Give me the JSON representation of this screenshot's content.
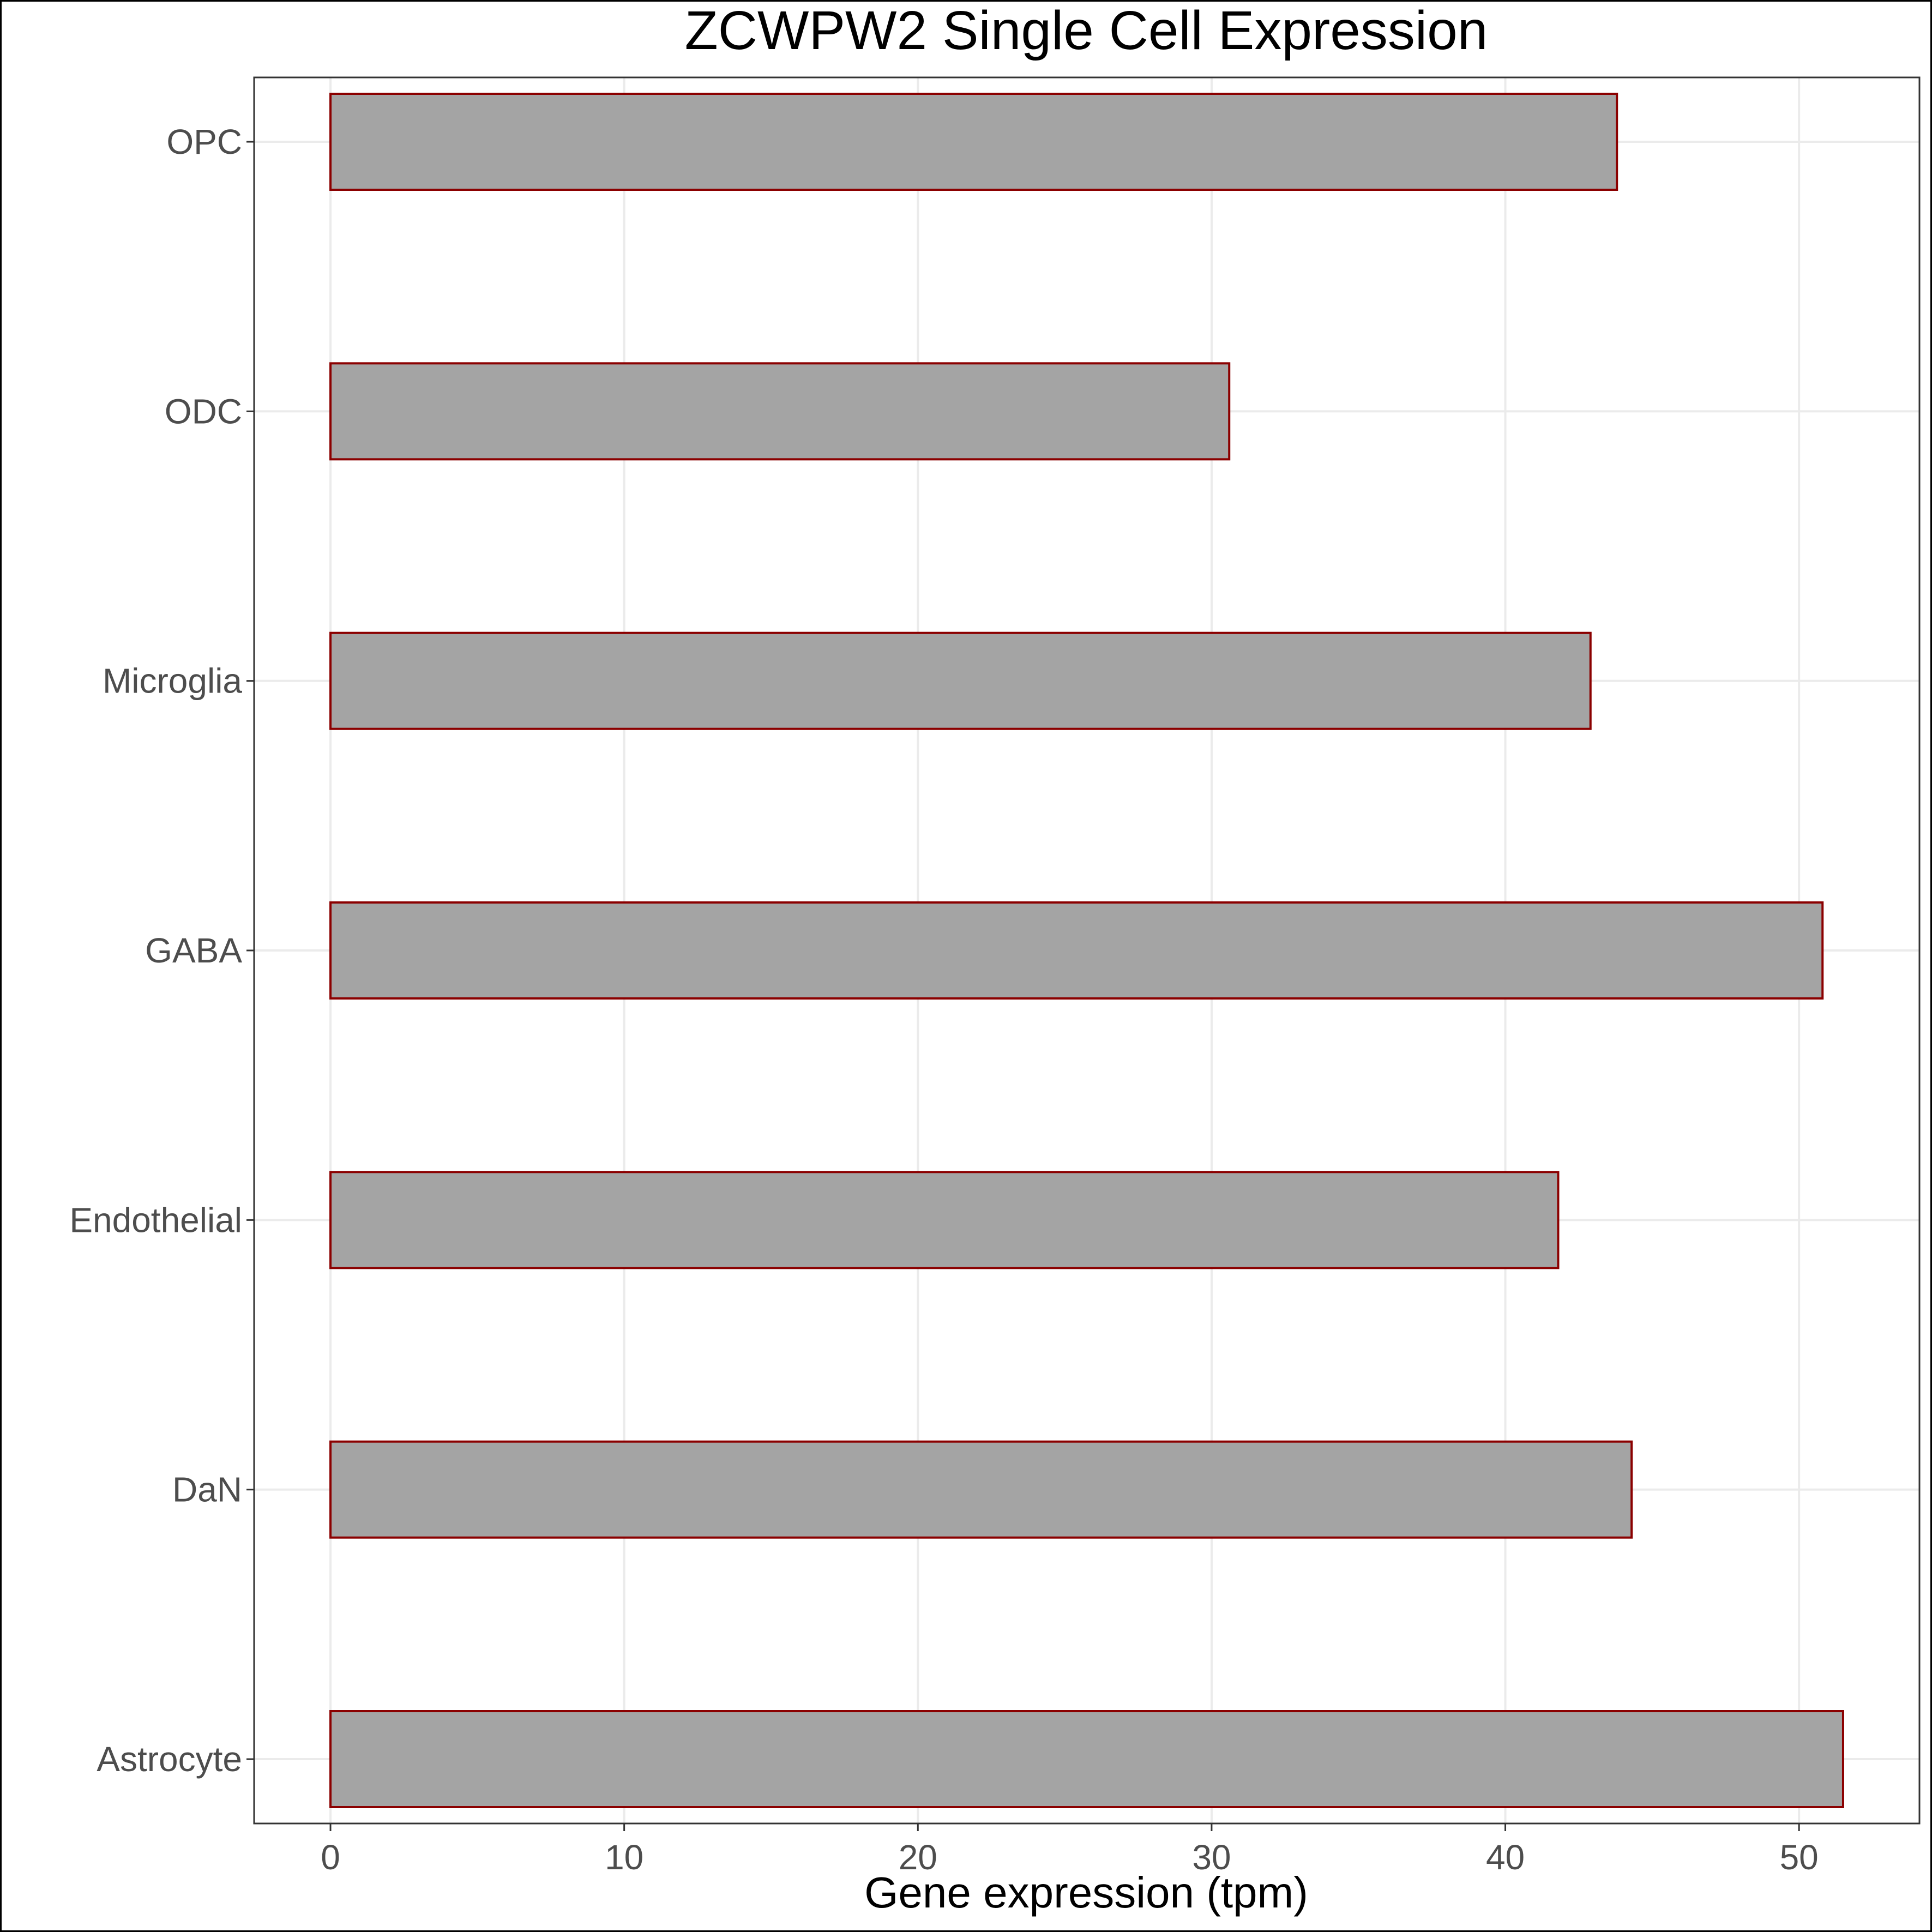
{
  "chart_data": {
    "type": "bar",
    "orientation": "horizontal",
    "title": "ZCWPW2 Single Cell Expression",
    "xlabel": "Gene expression (tpm)",
    "ylabel": "",
    "categories": [
      "Astrocyte",
      "DaN",
      "Endothelial",
      "GABA",
      "Microglia",
      "ODC",
      "OPC"
    ],
    "values": [
      51.5,
      44.3,
      41.8,
      50.8,
      42.9,
      30.6,
      43.8
    ],
    "xlim": [
      -2.6,
      54.1
    ],
    "xticks": [
      0,
      10,
      20,
      30,
      40,
      50
    ],
    "grid": true,
    "legend": "none",
    "colors": {
      "bar_fill": "#a4a4a4",
      "bar_outline": "#8b0000",
      "grid": "#ebebeb",
      "axis_text": "#4d4d4d"
    }
  }
}
